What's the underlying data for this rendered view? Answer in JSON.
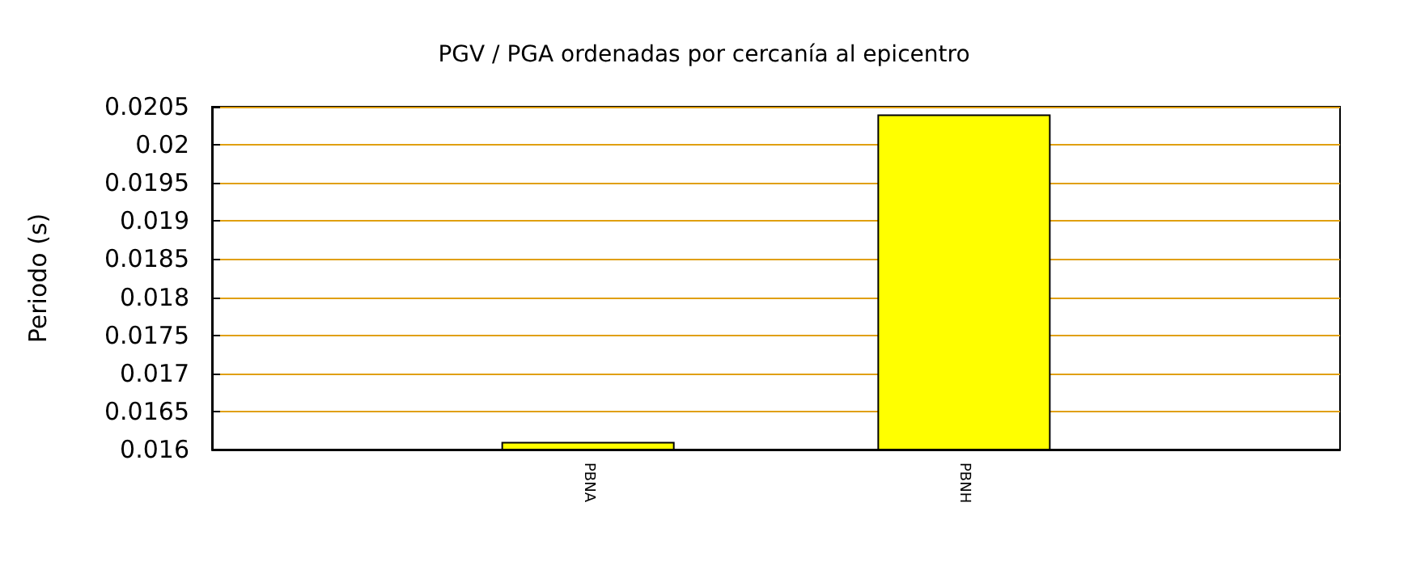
{
  "chart_data": {
    "type": "bar",
    "title": "PGV / PGA ordenadas por cercanía al epicentro",
    "ylabel": "Periodo (s)",
    "categories": [
      "PBNA",
      "PBNH"
    ],
    "values": [
      0.0161,
      0.0204
    ],
    "color": "#ffff00",
    "ylim": [
      0.016,
      0.0205
    ],
    "yticks": [
      0.016,
      0.0165,
      0.017,
      0.0175,
      0.018,
      0.0185,
      0.019,
      0.0195,
      0.02,
      0.0205
    ],
    "grid": "y"
  }
}
